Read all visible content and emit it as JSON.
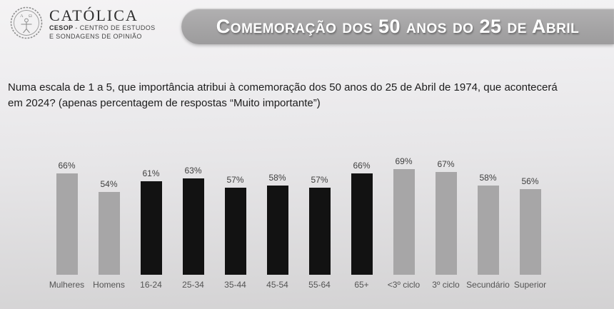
{
  "header": {
    "logo": {
      "brand": "CATÓLICA",
      "cesop": "CESOP",
      "line1_rest": " - CENTRO DE ESTUDOS",
      "line2": "E SONDAGENS DE OPINIÃO"
    },
    "banner_title": "Comemoração dos 50 anos do 25 de Abril"
  },
  "question": {
    "line1": "Numa escala de 1 a 5, que importância atribui à comemoração dos 50 anos do 25 de Abril de 1974, que acontecerá",
    "line2": "em 2024? (apenas percentagem de respostas “Muito importante”)"
  },
  "colors": {
    "bar_gray": "#a7a6a7",
    "bar_black": "#121212",
    "banner_bg": "#a5a4a5",
    "banner_text": "#ffffff",
    "value_label": "#3f3f3f",
    "category_label": "#545454"
  },
  "chart_data": {
    "type": "bar",
    "title": "",
    "xlabel": "",
    "ylabel": "",
    "grid": false,
    "legend": false,
    "value_suffix": "%",
    "categories": [
      "Mulheres",
      "Homens",
      "16-24",
      "25-34",
      "35-44",
      "45-54",
      "55-64",
      "65+",
      "<3º ciclo",
      "3º ciclo",
      "Secundário",
      "Superior"
    ],
    "values": [
      66,
      54,
      61,
      63,
      57,
      58,
      57,
      66,
      69,
      67,
      58,
      56
    ],
    "bar_colors": [
      "#a7a6a7",
      "#a7a6a7",
      "#121212",
      "#121212",
      "#121212",
      "#121212",
      "#121212",
      "#121212",
      "#a7a6a7",
      "#a7a6a7",
      "#a7a6a7",
      "#a7a6a7"
    ]
  }
}
